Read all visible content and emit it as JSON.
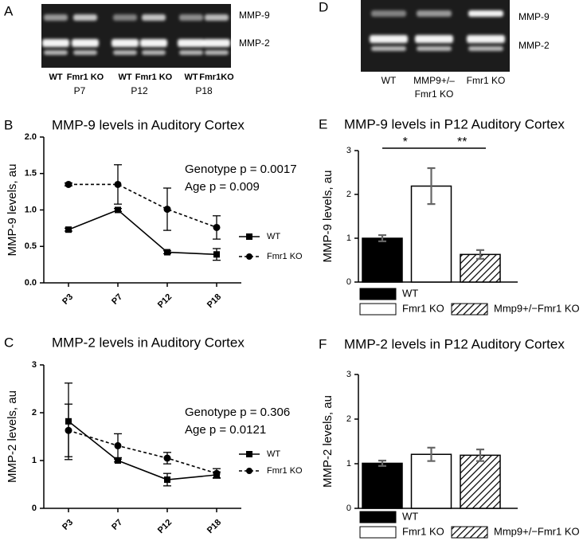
{
  "blots": [
    {
      "panel": "A",
      "bands": [
        "MMP-9",
        "MMP-2"
      ],
      "lanes": [
        [
          "WT"
        ],
        [
          "Fmr1 KO"
        ],
        [
          "WT"
        ],
        [
          "Fmr1 KO"
        ],
        [
          "WT"
        ],
        [
          "Fmr1KO"
        ]
      ],
      "groups": [
        "P7",
        "P12",
        "P18"
      ]
    },
    {
      "panel": "D",
      "bands": [
        "MMP-9",
        "MMP-2"
      ],
      "lanes": [
        [
          "WT"
        ],
        [
          "MMP9+/–",
          "Fmr1 KO"
        ],
        [
          "Fmr1 KO"
        ]
      ]
    }
  ],
  "chart_data": [
    {
      "panel": "B",
      "type": "line",
      "title": "MMP-9 levels in Auditory Cortex",
      "y_label": "MMP-9 levels, au",
      "categories": [
        "P3",
        "P7",
        "P12",
        "P18"
      ],
      "series": [
        {
          "name": "WT",
          "color": "#000000",
          "line_style": "solid",
          "marker": "square",
          "values": [
            0.73,
            1.0,
            0.42,
            0.39
          ],
          "errors": [
            0.02,
            0.02,
            0.02,
            0.08
          ]
        },
        {
          "name": "Fmr1 KO",
          "color": "#000000",
          "line_style": "dashed",
          "marker": "circle",
          "values": [
            1.35,
            1.35,
            1.01,
            0.76
          ],
          "errors": [
            0.02,
            0.27,
            0.29,
            0.16
          ]
        }
      ],
      "annotations": [
        "Genotype p = 0.0017",
        "Age p = 0.009"
      ],
      "ylim": [
        0,
        2
      ],
      "yticks": [
        {
          "value": 0,
          "label": "0.0"
        },
        0.5,
        {
          "value": 1,
          "label": "1.0"
        },
        1.5,
        {
          "value": 2,
          "label": "2.0"
        }
      ]
    },
    {
      "panel": "C",
      "type": "line",
      "title": "MMP-2 levels in Auditory Cortex",
      "y_label": "MMP-2 levels, au",
      "categories": [
        "P3",
        "P7",
        "P12",
        "P18"
      ],
      "series": [
        {
          "name": "WT",
          "color": "#000000",
          "line_style": "solid",
          "marker": "square",
          "values": [
            1.82,
            1.0,
            0.6,
            0.7
          ],
          "errors": [
            0.8,
            0.03,
            0.13,
            0.06
          ]
        },
        {
          "name": "Fmr1 KO",
          "color": "#000000",
          "line_style": "dashed",
          "marker": "circle",
          "values": [
            1.63,
            1.31,
            1.05,
            0.73
          ],
          "errors": [
            0.55,
            0.25,
            0.12,
            0.1
          ]
        }
      ],
      "annotations": [
        "Genotype p = 0.306",
        "Age p = 0.0121"
      ],
      "ylim": [
        0,
        3
      ],
      "yticks": [
        0,
        1,
        2,
        3
      ]
    },
    {
      "panel": "E",
      "type": "bar",
      "title": "MMP-9 levels in P12 Auditory Cortex",
      "y_label": "MMP-9 levels, au",
      "categories": [
        "WT",
        "Fmr1 KO",
        "Mmp9+/−Fmr1 KO"
      ],
      "values": [
        1.0,
        2.19,
        0.63
      ],
      "errors": [
        0.07,
        0.41,
        0.1
      ],
      "fills": [
        "#000000",
        "#ffffff",
        "hatched"
      ],
      "significance": [
        "*",
        "**"
      ],
      "ylim": [
        0,
        3
      ],
      "yticks": [
        0,
        1,
        2,
        3
      ]
    },
    {
      "panel": "F",
      "type": "bar",
      "title": "MMP-2 levels in P12 Auditory Cortex",
      "y_label": "MMP-2 levels, au",
      "categories": [
        "WT",
        "Fmr1 KO",
        "Mmp9+/−Fmr1 KO"
      ],
      "values": [
        1.01,
        1.21,
        1.19
      ],
      "errors": [
        0.06,
        0.15,
        0.13
      ],
      "fills": [
        "#000000",
        "#ffffff",
        "hatched"
      ],
      "ylim": [
        0,
        3
      ],
      "yticks": [
        0,
        1,
        2,
        3
      ]
    }
  ]
}
